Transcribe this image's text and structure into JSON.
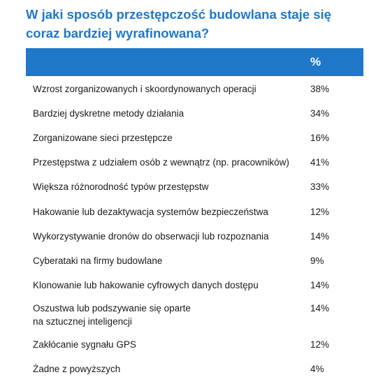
{
  "chart_data": {
    "type": "table",
    "title": "W jaki sposób przestępczość budowlana staje się coraz bardziej wyrafinowana?",
    "columns": [
      "",
      "%"
    ],
    "rows": [
      {
        "label": "Wzrost zorganizowanych i skoordynowanych operacji",
        "value": "38%"
      },
      {
        "label": "Bardziej dyskretne metody działania",
        "value": "34%"
      },
      {
        "label": "Zorganizowane sieci przestępcze",
        "value": "16%"
      },
      {
        "label": "Przestępstwa z udziałem osób z wewnątrz (np. pracowników)",
        "value": "41%"
      },
      {
        "label": "Większa różnorodność typów przestępstw",
        "value": "33%"
      },
      {
        "label": "Hakowanie lub dezaktywacja systemów bezpieczeństwa",
        "value": "12%"
      },
      {
        "label": "Wykorzystywanie dronów do obserwacji lub rozpoznania",
        "value": "14%"
      },
      {
        "label": "Cyberataki na firmy budowlane",
        "value": "9%"
      },
      {
        "label": "Klonowanie lub hakowanie cyfrowych danych dostępu",
        "value": "14%"
      },
      {
        "label": "Oszustwa lub podszywanie się oparte\nna sztucznej inteligencji",
        "value": "14%"
      },
      {
        "label": "Zakłócanie sygnału GPS",
        "value": "12%"
      },
      {
        "label": "Żadne z powyższych",
        "value": "4%"
      }
    ],
    "colors": {
      "header": "#1f78c8",
      "title": "#1f78c8"
    }
  }
}
